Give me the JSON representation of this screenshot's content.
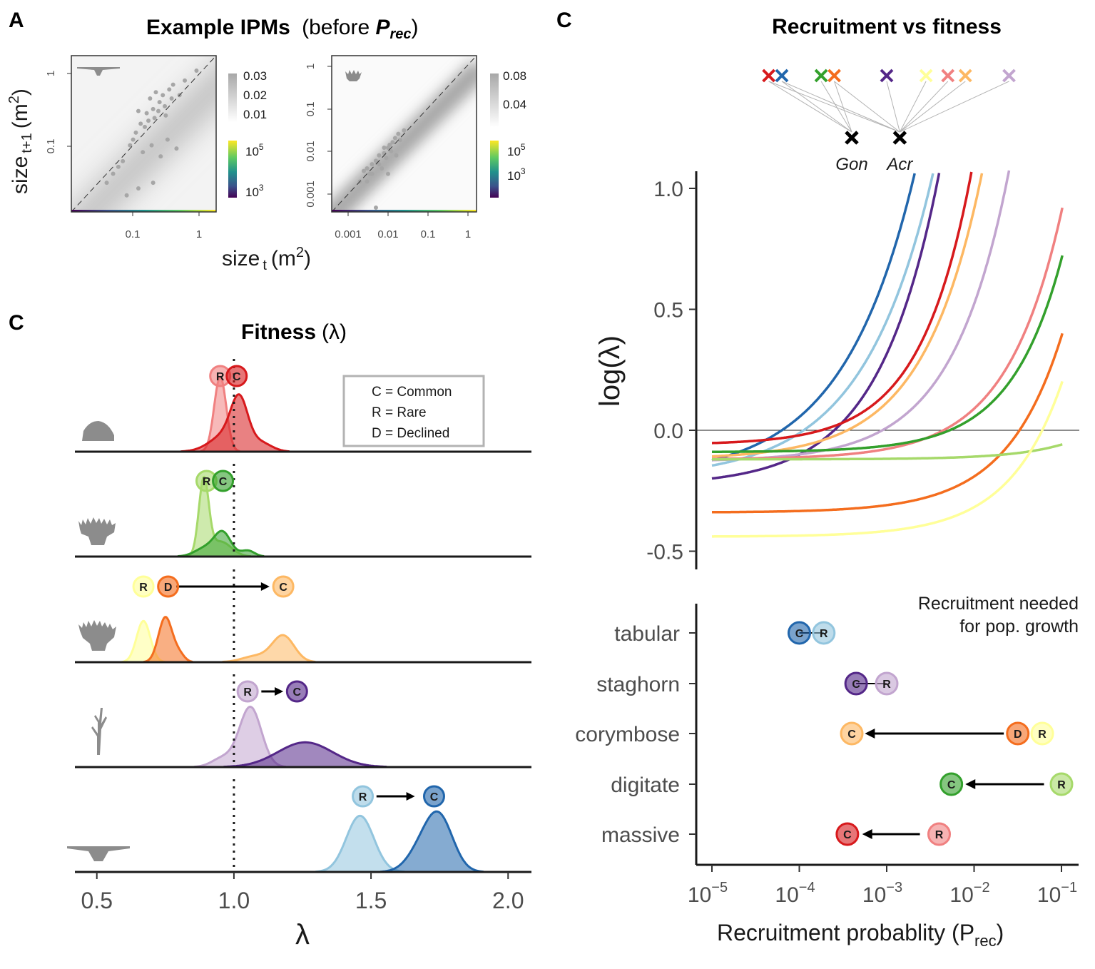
{
  "panel_letters": {
    "a": "A",
    "b": "C",
    "c": "C"
  },
  "colors": {
    "massive_common": "#D7191C",
    "massive_rare": "#F08080",
    "digitate_common": "#33A02C",
    "digitate_rare": "#A6D96A",
    "corymbose_common": "#FDB863",
    "corymbose_rare": "#FFFF99",
    "corymbose_declined": "#F46D1E",
    "staghorn_common": "#542788",
    "staghorn_rare": "#C2A5CF",
    "tabular_common": "#2166AC",
    "tabular_rare": "#92C5DE",
    "gon": "#000000",
    "acr": "#000000"
  },
  "legend_box": {
    "common": "C = Common",
    "rare": "R = Rare",
    "declined": "D = Declined"
  },
  "badge_letters": {
    "common": "C",
    "rare": "R",
    "declined": "D"
  },
  "chart_data": [
    {
      "type": "heatmap",
      "panel": "A-left",
      "title": "Example IPMs (before P_rec)",
      "title_main": "Example IPMs",
      "title_paren": "(before ",
      "title_p": "P",
      "title_sub": "rec",
      "title_close": ")",
      "xlabel": "size",
      "xlabel_sub": "t",
      "xlabel_unit": "(m",
      "xlabel_sup": "2",
      "xlabel_close": ")",
      "ylabel": "size",
      "ylabel_sub": "t+1",
      "ylabel_unit": "(m",
      "ylabel_sup": "2",
      "ylabel_close": ")",
      "x_scale": "log",
      "y_scale": "log",
      "x_ticks": [
        "0.1",
        "1"
      ],
      "y_ticks": [
        "0.1",
        "1"
      ],
      "colorbar_grey_ticks": [
        "0.03",
        "0.02",
        "0.01"
      ],
      "colorbar_viridis_ticks": [
        "10",
        "10"
      ],
      "colorbar_viridis_exps": [
        "5",
        "3"
      ],
      "points": [
        [
          0.05,
          0.04
        ],
        [
          0.07,
          0.06
        ],
        [
          0.1,
          0.12
        ],
        [
          0.13,
          0.2
        ],
        [
          0.16,
          0.28
        ],
        [
          0.2,
          0.32
        ],
        [
          0.25,
          0.4
        ],
        [
          0.3,
          0.35
        ],
        [
          0.12,
          0.3
        ],
        [
          0.18,
          0.45
        ],
        [
          0.22,
          0.55
        ],
        [
          0.35,
          0.6
        ],
        [
          0.4,
          0.7
        ],
        [
          0.28,
          0.5
        ],
        [
          0.15,
          0.18
        ],
        [
          0.09,
          0.1
        ],
        [
          0.06,
          0.05
        ],
        [
          0.04,
          0.03
        ],
        [
          0.11,
          0.15
        ],
        [
          0.14,
          0.08
        ],
        [
          0.19,
          0.1
        ],
        [
          0.26,
          0.07
        ],
        [
          0.33,
          0.12
        ],
        [
          0.45,
          0.09
        ],
        [
          0.08,
          0.02
        ],
        [
          0.12,
          0.025
        ],
        [
          0.2,
          0.03
        ],
        [
          0.6,
          0.8
        ],
        [
          0.9,
          1.1
        ],
        [
          0.5,
          0.5
        ],
        [
          0.21,
          0.24
        ],
        [
          0.17,
          0.22
        ],
        [
          0.24,
          0.3
        ],
        [
          0.31,
          0.26
        ],
        [
          0.38,
          0.45
        ]
      ]
    },
    {
      "type": "heatmap",
      "panel": "A-right",
      "x_scale": "log",
      "y_scale": "log",
      "x_ticks": [
        "0.001",
        "0.01",
        "0.1",
        "1"
      ],
      "y_ticks": [
        "0.001",
        "0.01",
        "0.1",
        "1"
      ],
      "colorbar_grey_ticks": [
        "0.08",
        "0.04"
      ],
      "colorbar_viridis_ticks": [
        "10",
        "10"
      ],
      "colorbar_viridis_exps": [
        "5",
        "3"
      ],
      "points": [
        [
          0.002,
          0.002
        ],
        [
          0.003,
          0.004
        ],
        [
          0.004,
          0.003
        ],
        [
          0.005,
          0.006
        ],
        [
          0.006,
          0.005
        ],
        [
          0.008,
          0.009
        ],
        [
          0.01,
          0.012
        ],
        [
          0.012,
          0.01
        ],
        [
          0.015,
          0.02
        ],
        [
          0.02,
          0.018
        ],
        [
          0.004,
          0.005
        ],
        [
          0.007,
          0.004
        ],
        [
          0.009,
          0.007
        ],
        [
          0.011,
          0.014
        ],
        [
          0.003,
          0.002
        ],
        [
          0.0025,
          0.0035
        ],
        [
          0.006,
          0.008
        ],
        [
          0.013,
          0.016
        ],
        [
          0.018,
          0.025
        ],
        [
          0.025,
          0.03
        ],
        [
          0.005,
          0.0005
        ],
        [
          0.01,
          0.003
        ],
        [
          0.016,
          0.008
        ],
        [
          0.008,
          0.012
        ],
        [
          0.0035,
          0.003
        ]
      ]
    },
    {
      "type": "area",
      "panel": "B",
      "title": "Fitness (λ)",
      "title_main": "Fitness",
      "title_paren": "(λ)",
      "xlabel": "λ",
      "xlim": [
        0.42,
        2.08
      ],
      "x_ticks": [
        "0.5",
        "1.0",
        "1.5",
        "2.0"
      ],
      "rows": [
        {
          "morphology": "massive",
          "series": [
            {
              "group": "R",
              "color_key": "massive_rare",
              "peaks": [
                [
                  0.95,
                  0.022,
                  1.0
                ]
              ]
            },
            {
              "group": "C",
              "color_key": "massive_common",
              "peaks": [
                [
                  1.02,
                  0.03,
                  0.55
                ],
                [
                  0.98,
                  0.06,
                  0.25
                ],
                [
                  1.1,
                  0.04,
                  0.1
                ]
              ]
            }
          ],
          "badges": [
            {
              "g": "R",
              "x": 0.95
            },
            {
              "g": "C",
              "x": 1.01
            }
          ],
          "arrow": null
        },
        {
          "morphology": "digitate",
          "series": [
            {
              "group": "R",
              "color_key": "digitate_rare",
              "peaks": [
                [
                  0.89,
                  0.018,
                  1.0
                ],
                [
                  0.95,
                  0.04,
                  0.2
                ]
              ]
            },
            {
              "group": "C",
              "color_key": "digitate_common",
              "peaks": [
                [
                  0.96,
                  0.03,
                  0.3
                ],
                [
                  0.9,
                  0.04,
                  0.12
                ],
                [
                  1.05,
                  0.025,
                  0.08
                ]
              ]
            }
          ],
          "badges": [
            {
              "g": "R",
              "x": 0.9
            },
            {
              "g": "C",
              "x": 0.96
            }
          ],
          "arrow": null
        },
        {
          "morphology": "corymbose",
          "series": [
            {
              "group": "R",
              "color_key": "corymbose_rare",
              "peaks": [
                [
                  0.67,
                  0.025,
                  0.55
                ]
              ]
            },
            {
              "group": "D",
              "color_key": "corymbose_declined",
              "peaks": [
                [
                  0.75,
                  0.025,
                  0.6
                ],
                [
                  0.8,
                  0.02,
                  0.1
                ]
              ]
            },
            {
              "group": "C",
              "color_key": "corymbose_common",
              "peaks": [
                [
                  1.18,
                  0.04,
                  0.35
                ],
                [
                  1.08,
                  0.05,
                  0.08
                ]
              ]
            }
          ],
          "badges": [
            {
              "g": "R",
              "x": 0.67
            },
            {
              "g": "D",
              "x": 0.76
            },
            {
              "g": "C",
              "x": 1.18
            }
          ],
          "arrow": [
            0.79,
            1.13
          ]
        },
        {
          "morphology": "staghorn",
          "series": [
            {
              "group": "R",
              "color_key": "staghorn_rare",
              "peaks": [
                [
                  1.06,
                  0.04,
                  0.8
                ],
                [
                  0.96,
                  0.04,
                  0.12
                ]
              ]
            },
            {
              "group": "C",
              "color_key": "staghorn_common",
              "peaks": [
                [
                  1.26,
                  0.1,
                  0.33
                ]
              ]
            }
          ],
          "badges": [
            {
              "g": "R",
              "x": 1.05
            },
            {
              "g": "C",
              "x": 1.23
            }
          ],
          "arrow": [
            1.1,
            1.18
          ]
        },
        {
          "morphology": "tabular",
          "series": [
            {
              "group": "R",
              "color_key": "tabular_rare",
              "peaks": [
                [
                  1.46,
                  0.05,
                  0.75
                ]
              ]
            },
            {
              "group": "C",
              "color_key": "tabular_common",
              "peaks": [
                [
                  1.75,
                  0.05,
                  0.7
                ],
                [
                  1.68,
                  0.05,
                  0.25
                ]
              ]
            }
          ],
          "badges": [
            {
              "g": "R",
              "x": 1.47
            },
            {
              "g": "C",
              "x": 1.73
            }
          ],
          "arrow": [
            1.52,
            1.66
          ]
        }
      ]
    },
    {
      "type": "line",
      "panel": "C-top",
      "title": "Recruitment vs fitness",
      "ylabel": "log(λ)",
      "x_scale": "log",
      "xlim_exp": [
        -5.2,
        -0.8
      ],
      "ylim": [
        -0.58,
        1.1
      ],
      "y_ticks": [
        "1.0",
        "0.5",
        "0.0",
        "-0.5"
      ],
      "y_tick_values": [
        1.0,
        0.5,
        0.0,
        -0.5
      ],
      "series": [
        {
          "color_key": "tabular_common",
          "y0": -0.2,
          "k": 1.9,
          "x_int_exp": -4.2
        },
        {
          "color_key": "tabular_rare",
          "y0": -0.2,
          "k": 1.85,
          "x_int_exp": -3.95
        },
        {
          "color_key": "staghorn_common",
          "y0": -0.23,
          "k": 1.6,
          "x_int_exp": -3.6
        },
        {
          "color_key": "corymbose_common",
          "y0": -0.12,
          "k": 1.55,
          "x_int_exp": -3.45
        },
        {
          "color_key": "staghorn_rare",
          "y0": -0.13,
          "k": 1.5,
          "x_int_exp": -3.05
        },
        {
          "color_key": "massive_common",
          "y0": -0.06,
          "k": 1.35,
          "x_int_exp": -3.75
        },
        {
          "color_key": "massive_rare",
          "y0": -0.12,
          "k": 1.45,
          "x_int_exp": -2.35
        },
        {
          "color_key": "digitate_common",
          "y0": -0.09,
          "k": 1.35,
          "x_int_exp": -2.28
        },
        {
          "color_key": "corymbose_declined",
          "y0": -0.34,
          "k": 1.45,
          "x_int_exp": -1.48
        },
        {
          "color_key": "digitate_rare",
          "y0": -0.12,
          "k": 1.35,
          "x_int_exp": -0.6
        },
        {
          "color_key": "corymbose_rare",
          "y0": -0.44,
          "k": 1.4,
          "x_int_exp": -1.22
        }
      ],
      "crosses_top": [
        {
          "color_key": "massive_common",
          "x_exp": -4.35
        },
        {
          "color_key": "tabular_common",
          "x_exp": -4.2
        },
        {
          "color_key": "digitate_common",
          "x_exp": -3.75
        },
        {
          "color_key": "corymbose_declined",
          "x_exp": -3.6
        },
        {
          "color_key": "staghorn_common",
          "x_exp": -3.0
        },
        {
          "color_key": "corymbose_rare",
          "x_exp": -2.55
        },
        {
          "color_key": "massive_rare",
          "x_exp": -2.3
        },
        {
          "color_key": "corymbose_common",
          "x_exp": -2.1
        },
        {
          "color_key": "staghorn_rare",
          "x_exp": -1.6
        }
      ],
      "crosses_genus": [
        {
          "label": "Gon",
          "x_exp": -3.4
        },
        {
          "label": "Acr",
          "x_exp": -2.85
        }
      ]
    },
    {
      "type": "scatter",
      "panel": "C-bottom",
      "annotation_line1": "Recruitment needed",
      "annotation_line2": "for pop. growth",
      "xlabel_main": "Recruitment probablity ",
      "xlabel_paren": "(P",
      "xlabel_sub": "rec",
      "xlabel_close": ")",
      "x_scale": "log",
      "x_ticks_exp": [
        -5,
        -4,
        -3,
        -2,
        -1
      ],
      "x_tick_base": "10",
      "x_tick_exp_labels": [
        "−5",
        "−4",
        "−3",
        "−2",
        "−1"
      ],
      "categories": [
        "tabular",
        "staghorn",
        "corymbose",
        "digitate",
        "massive"
      ],
      "rows": [
        {
          "category": "tabular",
          "points": [
            {
              "g": "C",
              "color_key": "tabular_common",
              "x_exp": -4.0
            },
            {
              "g": "R",
              "color_key": "tabular_rare",
              "x_exp": -3.72
            }
          ],
          "arrow": null
        },
        {
          "category": "staghorn",
          "points": [
            {
              "g": "C",
              "color_key": "staghorn_common",
              "x_exp": -3.35
            },
            {
              "g": "R",
              "color_key": "staghorn_rare",
              "x_exp": -3.0
            }
          ],
          "arrow": null
        },
        {
          "category": "corymbose",
          "points": [
            {
              "g": "C",
              "color_key": "corymbose_common",
              "x_exp": -3.4
            },
            {
              "g": "D",
              "color_key": "corymbose_declined",
              "x_exp": -1.5
            },
            {
              "g": "R",
              "color_key": "corymbose_rare",
              "x_exp": -1.22
            }
          ],
          "arrow": [
            -1.66,
            -3.25
          ]
        },
        {
          "category": "digitate",
          "points": [
            {
              "g": "C",
              "color_key": "digitate_common",
              "x_exp": -2.26
            },
            {
              "g": "R",
              "color_key": "digitate_rare",
              "x_exp": -1.0
            }
          ],
          "arrow": [
            -1.2,
            -2.1
          ]
        },
        {
          "category": "massive",
          "points": [
            {
              "g": "C",
              "color_key": "massive_common",
              "x_exp": -3.45
            },
            {
              "g": "R",
              "color_key": "massive_rare",
              "x_exp": -2.4
            }
          ],
          "arrow": [
            -2.62,
            -3.28
          ]
        }
      ]
    }
  ]
}
